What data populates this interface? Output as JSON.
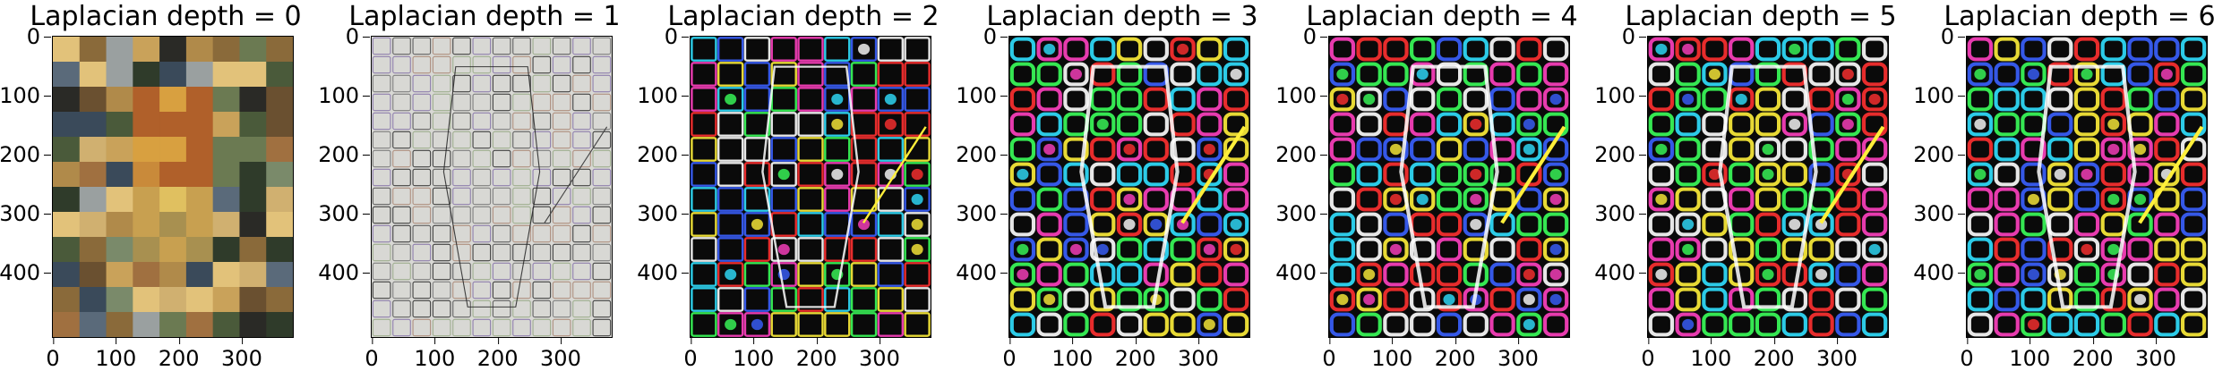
{
  "panels": [
    {
      "title": "Laplacian depth = 0",
      "style": "color"
    },
    {
      "title": "Laplacian depth = 1",
      "style": "edge-fine"
    },
    {
      "title": "Laplacian depth = 2",
      "style": "edge-mid"
    },
    {
      "title": "Laplacian depth = 3",
      "style": "edge-coarse"
    },
    {
      "title": "Laplacian depth = 4",
      "style": "edge-coarse"
    },
    {
      "title": "Laplacian depth = 5",
      "style": "edge-coarse"
    },
    {
      "title": "Laplacian depth = 6",
      "style": "edge-coarse"
    }
  ],
  "y_ticks": [
    "0",
    "100",
    "200",
    "300",
    "400"
  ],
  "x_ticks": [
    "0",
    "100",
    "200",
    "300"
  ]
}
